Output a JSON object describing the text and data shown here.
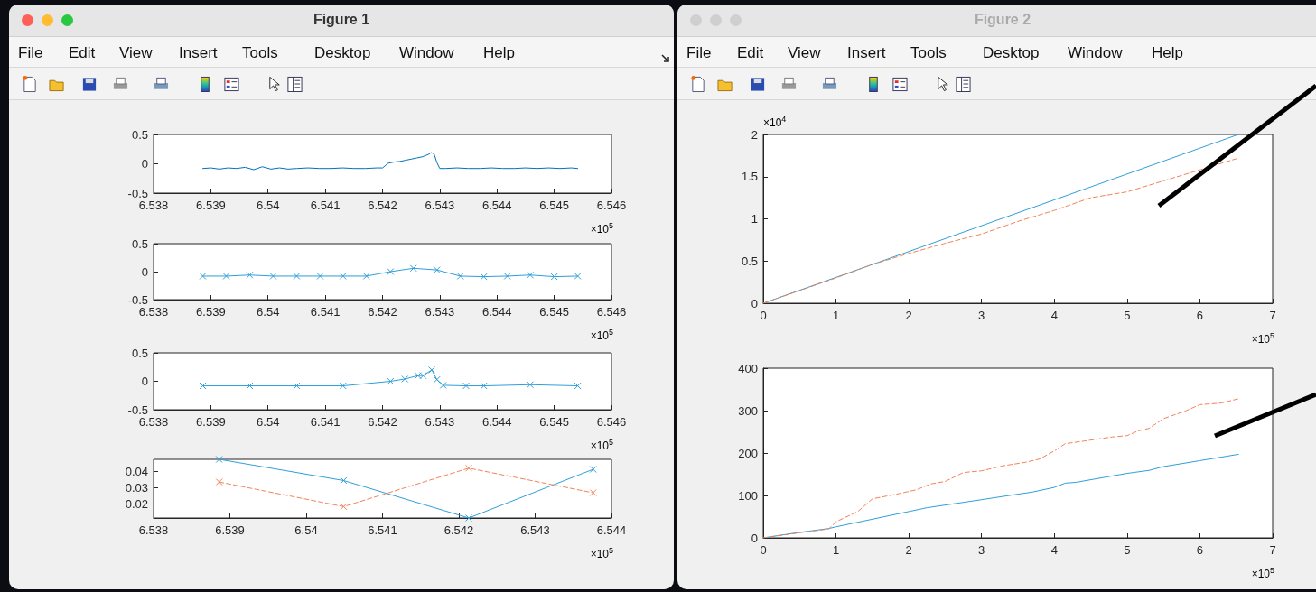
{
  "chart_data": [
    {
      "type": "other",
      "title": "Figure 1",
      "annotations": [
        "File",
        "Edit",
        "View",
        "Insert",
        "Tools",
        "Desktop",
        "Window",
        "Help"
      ]
    },
    {
      "type": "line",
      "xlabel": "×10$^{5}$",
      "xlim": [
        6.538,
        6.546
      ],
      "xticks": [
        6.538,
        6.539,
        6.54,
        6.541,
        6.542,
        6.543,
        6.544,
        6.545,
        6.546
      ],
      "ylim": [
        -0.5,
        0.5
      ],
      "yticks": [
        -0.5,
        0,
        0.5
      ],
      "grid": false,
      "marker": "none",
      "series": [
        {
          "color": "#0072bd",
          "line_style": "solid",
          "x": [
            6.53886,
            6.539,
            6.53915,
            6.5393,
            6.53945,
            6.5396,
            6.53975,
            6.5399,
            6.54005,
            6.5402,
            6.54035,
            6.5405,
            6.5407,
            6.5409,
            6.5411,
            6.5413,
            6.5415,
            6.5417,
            6.5419,
            6.542,
            6.54205,
            6.5421,
            6.5422,
            6.5423,
            6.5424,
            6.5425,
            6.5426,
            6.5427,
            6.5428,
            6.54285,
            6.5429,
            6.54295,
            6.543,
            6.5431,
            6.5433,
            6.5435,
            6.5437,
            6.5439,
            6.5441,
            6.5443,
            6.5445,
            6.5447,
            6.5449,
            6.5451,
            6.5453,
            6.54541
          ],
          "values": [
            -0.08,
            -0.07,
            -0.09,
            -0.07,
            -0.08,
            -0.06,
            -0.1,
            -0.05,
            -0.09,
            -0.07,
            -0.09,
            -0.08,
            -0.07,
            -0.08,
            -0.08,
            -0.07,
            -0.08,
            -0.08,
            -0.07,
            -0.07,
            -0.03,
            0.01,
            0.03,
            0.04,
            0.06,
            0.08,
            0.1,
            0.12,
            0.16,
            0.19,
            0.17,
            0.02,
            -0.08,
            -0.08,
            -0.07,
            -0.08,
            -0.08,
            -0.07,
            -0.08,
            -0.08,
            -0.07,
            -0.08,
            -0.07,
            -0.08,
            -0.07,
            -0.08
          ]
        }
      ]
    },
    {
      "type": "line",
      "xlabel": "×10$^{5}$",
      "xlim": [
        6.538,
        6.546
      ],
      "xticks": [
        6.538,
        6.539,
        6.54,
        6.541,
        6.542,
        6.543,
        6.544,
        6.545,
        6.546
      ],
      "ylim": [
        -0.5,
        0.5
      ],
      "yticks": [
        -0.5,
        0,
        0.5
      ],
      "grid": false,
      "marker": "cross",
      "series": [
        {
          "color": "#2f9fd8",
          "line_style": "solid",
          "x": [
            6.53886,
            6.53927,
            6.53968,
            6.54009,
            6.5405,
            6.54091,
            6.54131,
            6.54172,
            6.54214,
            6.54254,
            6.54295,
            6.54336,
            6.54377,
            6.54418,
            6.54458,
            6.545,
            6.54541
          ],
          "values": [
            -0.08,
            -0.08,
            -0.06,
            -0.08,
            -0.08,
            -0.08,
            -0.08,
            -0.08,
            0.0,
            0.06,
            0.03,
            -0.08,
            -0.09,
            -0.08,
            -0.06,
            -0.09,
            -0.08
          ]
        }
      ]
    },
    {
      "type": "line",
      "xlabel": "×10$^{5}$",
      "xlim": [
        6.538,
        6.546
      ],
      "xticks": [
        6.538,
        6.539,
        6.54,
        6.541,
        6.542,
        6.543,
        6.544,
        6.545,
        6.546
      ],
      "ylim": [
        -0.5,
        0.5
      ],
      "yticks": [
        -0.5,
        0,
        0.5
      ],
      "grid": false,
      "marker": "cross",
      "series": [
        {
          "color": "#2f9fd8",
          "line_style": "solid",
          "x": [
            6.53886,
            6.53968,
            6.5405,
            6.54131,
            6.54214,
            6.54239,
            6.54262,
            6.54271,
            6.54286,
            6.54295,
            6.54306,
            6.54346,
            6.54377,
            6.54458,
            6.54541
          ],
          "values": [
            -0.08,
            -0.08,
            -0.08,
            -0.08,
            0.0,
            0.04,
            0.1,
            0.1,
            0.2,
            0.03,
            -0.07,
            -0.08,
            -0.08,
            -0.06,
            -0.08
          ]
        }
      ]
    },
    {
      "type": "line",
      "xlabel": "×10$^{5}$",
      "xlim": [
        6.538,
        6.544
      ],
      "xticks": [
        6.538,
        6.539,
        6.54,
        6.541,
        6.542,
        6.543,
        6.544
      ],
      "ylim": [
        0.0112,
        0.0472
      ],
      "yticks": [
        0.02,
        0.03,
        0.04
      ],
      "grid": false,
      "marker": "cross",
      "series": [
        {
          "color": "#2f9fd8",
          "line_style": "solid",
          "x": [
            6.53886,
            6.54049,
            6.54213,
            6.54376
          ],
          "values": [
            0.0472,
            0.0342,
            0.0112,
            0.0411
          ]
        },
        {
          "color": "#f0845a",
          "line_style": "dashed",
          "x": [
            6.53886,
            6.54049,
            6.54213,
            6.54376
          ],
          "values": [
            0.0333,
            0.0182,
            0.0418,
            0.0267
          ]
        }
      ]
    },
    {
      "type": "other",
      "title": "Figure 2",
      "annotations": [
        "File",
        "Edit",
        "View",
        "Insert",
        "Tools",
        "Desktop",
        "Window",
        "Help"
      ]
    },
    {
      "type": "line",
      "xlabel": "×10$^{5}$",
      "ylabel": "×10$^{4}$",
      "xlim": [
        0,
        7
      ],
      "xticks": [
        0,
        1,
        2,
        3,
        4,
        5,
        6,
        7
      ],
      "ylim": [
        0,
        2
      ],
      "yticks": [
        0,
        0.5,
        1,
        1.5,
        2
      ],
      "grid": false,
      "marker": "none",
      "series": [
        {
          "color": "#2f9fd8",
          "line_style": "solid",
          "x": [
            0,
            6.53
          ],
          "values": [
            0,
            2
          ]
        },
        {
          "color": "#f0845a",
          "line_style": "dashed",
          "x": [
            0,
            1,
            1.5,
            2,
            2.5,
            3,
            3.5,
            4,
            4.5,
            5,
            5.5,
            6,
            6.53
          ],
          "values": [
            0,
            0.3,
            0.46,
            0.59,
            0.71,
            0.82,
            0.97,
            1.1,
            1.25,
            1.32,
            1.45,
            1.58,
            1.72
          ]
        }
      ]
    },
    {
      "type": "line",
      "xlabel": "×10$^{5}$",
      "xlim": [
        0,
        7
      ],
      "xticks": [
        0,
        1,
        2,
        3,
        4,
        5,
        6,
        7
      ],
      "ylim": [
        0,
        400
      ],
      "yticks": [
        0,
        100,
        200,
        300,
        400
      ],
      "grid": false,
      "marker": "none",
      "series": [
        {
          "color": "#2f9fd8",
          "line_style": "solid",
          "x": [
            0,
            0.5,
            0.9,
            1,
            2,
            2.25,
            3,
            3.5,
            3.7,
            4,
            4.15,
            4.3,
            5,
            5.3,
            5.5,
            6,
            6.53
          ],
          "values": [
            0,
            13,
            22,
            26,
            62,
            71,
            90,
            103,
            108,
            119,
            129,
            131,
            152,
            159,
            168,
            182,
            197
          ]
        },
        {
          "color": "#f0845a",
          "line_style": "dashed",
          "x": [
            0,
            0.5,
            0.9,
            1,
            1.3,
            1.5,
            1.8,
            2.1,
            2.3,
            2.5,
            2.75,
            3,
            3.3,
            3.6,
            3.8,
            4,
            4.15,
            4.4,
            4.8,
            5,
            5.15,
            5.3,
            5.5,
            5.8,
            6,
            6.3,
            6.53
          ],
          "values": [
            0,
            12,
            21,
            38,
            62,
            92,
            102,
            113,
            127,
            133,
            154,
            158,
            170,
            178,
            186,
            205,
            222,
            228,
            238,
            241,
            252,
            258,
            281,
            299,
            314,
            318,
            328
          ]
        }
      ]
    }
  ]
}
